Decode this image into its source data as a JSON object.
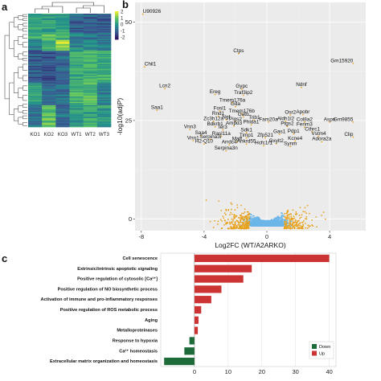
{
  "panels": {
    "a": "a",
    "b": "b",
    "c": "c"
  },
  "chart_data": [
    {
      "type": "heatmap",
      "panel": "a",
      "columns": [
        "KO1",
        "KO2",
        "KO3",
        "WT1",
        "WT2",
        "WT3"
      ],
      "colorbar_ticks": [
        "2",
        "1",
        "0",
        "-1",
        "-2"
      ],
      "colors": {
        "high": "#f4ee2a",
        "mid": "#22918c",
        "low": "#2b0d5f"
      },
      "clusters": [
        {
          "rows": 18,
          "values": [
            0.25,
            0.2,
            0.3,
            -0.9,
            -0.8,
            -1.0
          ]
        },
        {
          "rows": 6,
          "values": [
            0.6,
            0.9,
            0.5,
            -0.4,
            -0.6,
            -0.5
          ]
        },
        {
          "rows": 10,
          "values": [
            -0.3,
            0.6,
            1.6,
            -0.2,
            -0.1,
            -0.4
          ]
        },
        {
          "rows": 30,
          "values": [
            -0.9,
            -1.0,
            -0.7,
            0.4,
            0.6,
            0.5
          ]
        },
        {
          "rows": 20,
          "values": [
            0.2,
            -0.5,
            -0.6,
            0.6,
            0.8,
            -0.3
          ]
        },
        {
          "rows": 20,
          "values": [
            -0.6,
            0.9,
            -0.6,
            0.1,
            0.4,
            0.2
          ]
        }
      ]
    },
    {
      "type": "scatter",
      "panel": "b",
      "xlabel": "Log2FC (WT/A2ARKO)",
      "ylabel": "-log10(adjP)",
      "xlim": [
        -8.4,
        6.3
      ],
      "ylim": [
        -3,
        55
      ],
      "x_ticks": [
        -8,
        -4,
        0,
        4
      ],
      "y_ticks": [
        0,
        25,
        50
      ],
      "colors": {
        "nonsignificant": "#6bb6e8",
        "significant": "#e8a21c"
      },
      "labeled_genes": [
        {
          "label": "U90926",
          "x": -7.9,
          "y": 52.0
        },
        {
          "label": "Gm15920",
          "x": 5.5,
          "y": 39.5
        },
        {
          "label": "Chil1",
          "x": -7.8,
          "y": 38.6
        },
        {
          "label": "Ctps",
          "x": -1.8,
          "y": 42.0
        },
        {
          "label": "Lcn2",
          "x": -6.5,
          "y": 33.1
        },
        {
          "label": "Gypc",
          "x": -1.6,
          "y": 33.0
        },
        {
          "label": "Ereg",
          "x": -3.3,
          "y": 31.6
        },
        {
          "label": "Traf3ip2",
          "x": -1.5,
          "y": 31.4
        },
        {
          "label": "Ndnf",
          "x": 2.2,
          "y": 33.4
        },
        {
          "label": "Tmem176a",
          "x": -2.2,
          "y": 29.5
        },
        {
          "label": "Gda",
          "x": -2.0,
          "y": 28.5
        },
        {
          "label": "Saa1",
          "x": -7.0,
          "y": 27.6
        },
        {
          "label": "Fosl1",
          "x": -3.0,
          "y": 27.4
        },
        {
          "label": "Tmem176b",
          "x": -1.6,
          "y": 26.7
        },
        {
          "label": "Rnd1",
          "x": -3.1,
          "y": 26.1
        },
        {
          "label": "Gatb",
          "x": -1.5,
          "y": 25.9
        },
        {
          "label": "Ngf",
          "x": -2.6,
          "y": 25.2
        },
        {
          "label": "Osr2",
          "x": 1.5,
          "y": 26.4
        },
        {
          "label": "Apobr",
          "x": 2.3,
          "y": 26.5
        },
        {
          "label": "Zc3h12a",
          "x": -3.4,
          "y": 24.8
        },
        {
          "label": "Pigs2",
          "x": -2.0,
          "y": 24.7
        },
        {
          "label": "Trib1",
          "x": -0.8,
          "y": 25.1
        },
        {
          "label": "Fam20a",
          "x": 0.1,
          "y": 24.6
        },
        {
          "label": "Aldh1l2",
          "x": 1.2,
          "y": 24.8
        },
        {
          "label": "Col8a2",
          "x": 2.4,
          "y": 24.6
        },
        {
          "label": "Aspn",
          "x": 4.0,
          "y": 24.6
        },
        {
          "label": "Gm9855",
          "x": 5.5,
          "y": 24.6
        },
        {
          "label": "Bdkrb1",
          "x": -3.3,
          "y": 23.4
        },
        {
          "label": "Ampd3",
          "x": -2.1,
          "y": 23.6
        },
        {
          "label": "Phlda1",
          "x": -1.0,
          "y": 23.9
        },
        {
          "label": "Ptgs2",
          "x": 1.3,
          "y": 23.5
        },
        {
          "label": "Fenm3",
          "x": 2.4,
          "y": 23.3
        },
        {
          "label": "Vnn3",
          "x": -4.9,
          "y": 22.7
        },
        {
          "label": "Ier3",
          "x": -2.8,
          "y": 22.6
        },
        {
          "label": "Sdk1",
          "x": -1.3,
          "y": 21.9
        },
        {
          "label": "Gas1",
          "x": 0.8,
          "y": 21.5
        },
        {
          "label": "Pdp1",
          "x": 1.7,
          "y": 21.6
        },
        {
          "label": "Cthrc1",
          "x": 2.9,
          "y": 22.1
        },
        {
          "label": "Saa4",
          "x": -4.2,
          "y": 21.2
        },
        {
          "label": "Rasl11a",
          "x": -2.9,
          "y": 21.0
        },
        {
          "label": "Timp1",
          "x": -1.3,
          "y": 20.6
        },
        {
          "label": "Zfp521",
          "x": -0.1,
          "y": 20.6
        },
        {
          "label": "Vstm4",
          "x": 3.3,
          "y": 21.0
        },
        {
          "label": "Clip",
          "x": 5.5,
          "y": 20.8
        },
        {
          "label": "Vnn1",
          "x": -4.7,
          "y": 19.9
        },
        {
          "label": "Serpina3i",
          "x": -3.6,
          "y": 20.2
        },
        {
          "label": "Maff",
          "x": -1.9,
          "y": 19.6
        },
        {
          "label": "Kcne4",
          "x": 1.8,
          "y": 19.8
        },
        {
          "label": "Adora2a",
          "x": 3.5,
          "y": 19.6
        },
        {
          "label": "H2-Q10",
          "x": -4.0,
          "y": 19.0
        },
        {
          "label": "Arrdc4",
          "x": -2.4,
          "y": 18.8
        },
        {
          "label": "Ankrd55",
          "x": -1.3,
          "y": 19.0
        },
        {
          "label": "Gxylt2",
          "x": 0.6,
          "y": 19.1
        },
        {
          "label": "Hcfc1r1",
          "x": -0.2,
          "y": 18.6
        },
        {
          "label": "Synm",
          "x": 1.5,
          "y": 18.4
        },
        {
          "label": "Serpina3n",
          "x": -2.6,
          "y": 17.3
        }
      ]
    },
    {
      "type": "bar",
      "panel": "c",
      "orientation": "horizontal",
      "categories": [
        "Cell senescence",
        "Extrinsic/intrinsic apoptotic signaling",
        "Positive regulation of cytosolic [Ca²⁺]",
        "Positive regulation of NO biosynthetic process",
        "Activation of immune and pro-inflammatory responses",
        "Positive regulation of ROS metabolic process",
        "Aging",
        "Metalloproteinases",
        "Response to hypoxia",
        "Ca²⁺ homeostasis",
        "Extracellular matrix organization and homeostasis"
      ],
      "values": [
        40,
        17,
        14.5,
        8,
        5,
        2,
        1.2,
        1,
        -1.5,
        -3,
        -9
      ],
      "direction": [
        "Up",
        "Up",
        "Up",
        "Up",
        "Up",
        "Up",
        "Up",
        "Up",
        "Down",
        "Down",
        "Down"
      ],
      "xlim": [
        -10,
        42
      ],
      "x_ticks": [
        0,
        10,
        20,
        30,
        40
      ],
      "legend": {
        "items": [
          "Down",
          "Up"
        ],
        "position": "bottom-right"
      },
      "colors": {
        "Up": "#cc3333",
        "Down": "#1e6b3a"
      }
    }
  ]
}
